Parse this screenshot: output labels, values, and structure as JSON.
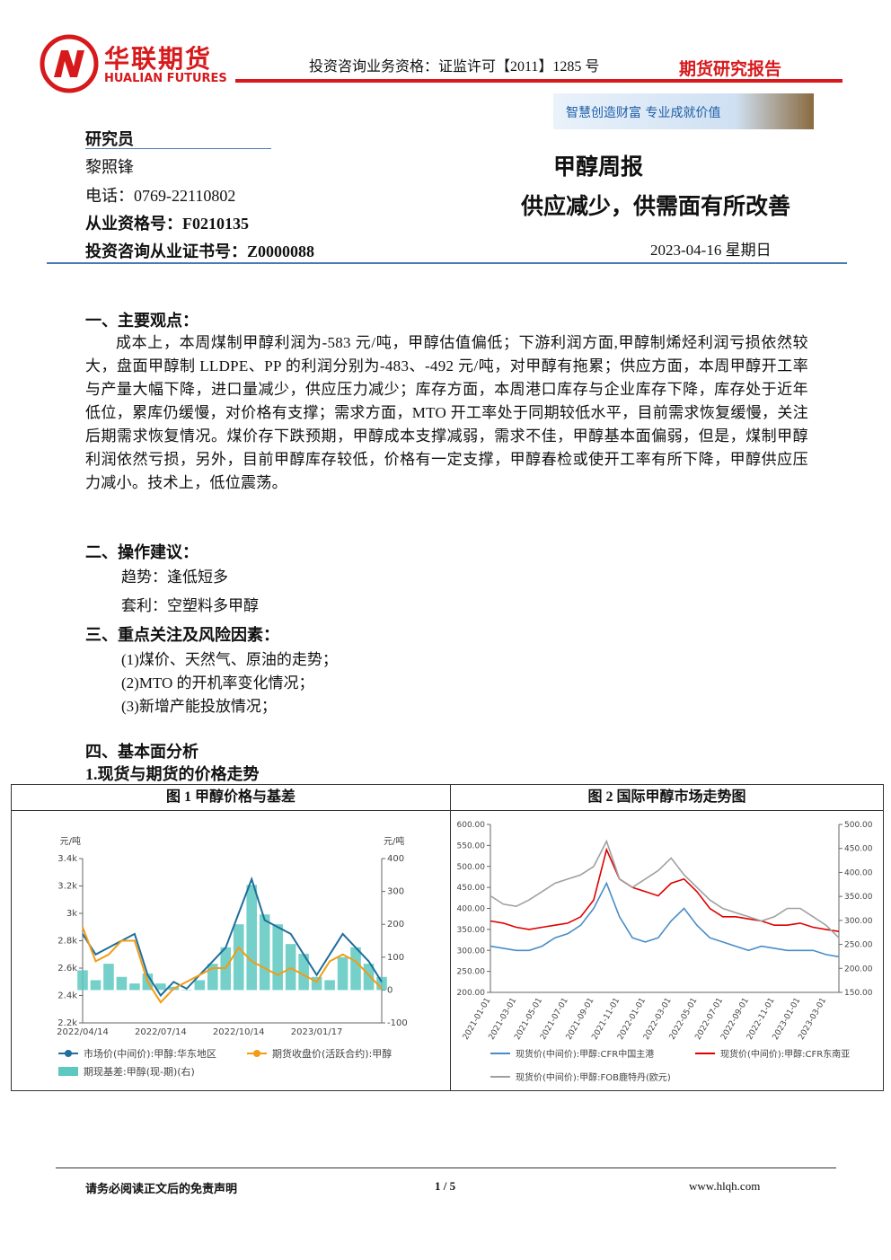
{
  "header": {
    "company": "华联期货",
    "company_en": "HUALIAN FUTURES",
    "qualification": "投资咨询业务资格：证监许可【2011】1285 号",
    "report_type": "期货研究报告",
    "slogan": "智慧创造财富  专业成就价值"
  },
  "researcher": {
    "heading": "研究员",
    "name": "黎照锋",
    "phone": "电话：0769-22110802",
    "license": "从业资格号：F0210135",
    "cert": "投资咨询从业证书号：Z0000088"
  },
  "report": {
    "title": "甲醇周报",
    "subtitle": "供应减少，供需面有所改善",
    "date": "2023-04-16 星期日"
  },
  "sections": [
    {
      "heading": "一、主要观点：",
      "paragraph": "成本上，本周煤制甲醇利润为-583 元/吨，甲醇估值偏低；下游利润方面,甲醇制烯烃利润亏损依然较大，盘面甲醇制 LLDPE、PP 的利润分别为-483、-492 元/吨，对甲醇有拖累；供应方面，本周甲醇开工率与产量大幅下降，进口量减少，供应压力减少；库存方面，本周港口库存与企业库存下降，库存处于近年低位，累库仍缓慢，对价格有支撑；需求方面，MTO 开工率处于同期较低水平，目前需求恢复缓慢，关注后期需求恢复情况。煤价存下跌预期，甲醇成本支撑减弱，需求不佳，甲醇基本面偏弱，但是，煤制甲醇利润依然亏损，另外，目前甲醇库存较低，价格有一定支撑，甲醇春检或使开工率有所下降，甲醇供应压力减小。技术上，低位震荡。"
    },
    {
      "heading": "二、操作建议：",
      "items": [
        "趋势：逢低短多",
        "套利：空塑料多甲醇"
      ]
    },
    {
      "heading": "三、重点关注及风险因素：",
      "items": [
        "(1)煤价、天然气、原油的走势；",
        "(2)MTO 的开机率变化情况；",
        "(3)新增产能投放情况；"
      ]
    },
    {
      "heading": "四、基本面分析",
      "subheading": "1.现货与期货的价格走势"
    }
  ],
  "figures": [
    {
      "title": "图 1  甲醇价格与基差",
      "chart_data": {
        "type": "combo",
        "y_unit": "元/吨",
        "y2_unit": "元/吨",
        "categories": [
          "2022/04/14",
          null,
          null,
          null,
          null,
          null,
          "2022/07/14",
          null,
          null,
          null,
          null,
          null,
          "2022/10/14",
          null,
          null,
          null,
          null,
          null,
          "2023/01/17",
          null,
          null,
          null,
          null,
          null
        ],
        "ylim": [
          2200,
          3400
        ],
        "yticks": [
          {
            "value": 2200,
            "label": "2.2k"
          },
          {
            "value": 2400,
            "label": "2.4k"
          },
          {
            "value": 2600,
            "label": "2.6k"
          },
          {
            "value": 2800,
            "label": "2.8k"
          },
          {
            "value": 3000,
            "label": "3k"
          },
          {
            "value": 3200,
            "label": "3.2k"
          },
          {
            "value": 3400,
            "label": "3.4k"
          }
        ],
        "y2lim": [
          -100,
          400
        ],
        "y2ticks": [
          -100,
          0,
          100,
          200,
          300,
          400
        ],
        "series": [
          {
            "name": "期现基差:甲醇(现-期)(右)",
            "type": "bar",
            "axis": "y2",
            "color": "#5cc8c0",
            "values": [
              60,
              30,
              80,
              40,
              20,
              50,
              20,
              10,
              0,
              30,
              80,
              130,
              200,
              320,
              230,
              200,
              140,
              110,
              40,
              30,
              100,
              130,
              80,
              40
            ]
          },
          {
            "name": "市场价(中间价):甲醇:华东地区",
            "type": "line",
            "color": "#1f6e9c",
            "values": [
              2850,
              2700,
              2750,
              2800,
              2850,
              2550,
              2400,
              2500,
              2450,
              2550,
              2650,
              2750,
              3000,
              3250,
              2950,
              2900,
              2850,
              2700,
              2550,
              2700,
              2850,
              2750,
              2650,
              2500
            ]
          },
          {
            "name": "期货收盘价(活跃合约):甲醇",
            "type": "line",
            "color": "#f39c12",
            "values": [
              2900,
              2650,
              2700,
              2800,
              2800,
              2500,
              2350,
              2450,
              2500,
              2550,
              2600,
              2600,
              2750,
              2650,
              2600,
              2550,
              2600,
              2550,
              2500,
              2650,
              2700,
              2650,
              2550,
              2450
            ]
          }
        ]
      }
    },
    {
      "title": "图 2  国际甲醇市场走势图",
      "chart_data": {
        "type": "line",
        "categories": [
          "2021-01-01",
          null,
          "2021-03-01",
          null,
          "2021-05-01",
          null,
          "2021-07-01",
          null,
          "2021-09-01",
          null,
          "2021-11-01",
          null,
          "2022-01-01",
          null,
          "2022-03-01",
          null,
          "2022-05-01",
          null,
          "2022-07-01",
          null,
          "2022-09-01",
          null,
          "2022-11-01",
          null,
          "2023-01-01",
          null,
          "2023-03-01",
          null
        ],
        "ylim": [
          200,
          600
        ],
        "yticks": [
          {
            "value": 200,
            "label": "200.00"
          },
          {
            "value": 250,
            "label": "250.00"
          },
          {
            "value": 300,
            "label": "300.00"
          },
          {
            "value": 350,
            "label": "350.00"
          },
          {
            "value": 400,
            "label": "400.00"
          },
          {
            "value": 450,
            "label": "450.00"
          },
          {
            "value": 500,
            "label": "500.00"
          },
          {
            "value": 550,
            "label": "550.00"
          },
          {
            "value": 600,
            "label": "600.00"
          }
        ],
        "y2lim": [
          150,
          500
        ],
        "y2ticks": [
          {
            "value": 150,
            "label": "150.00"
          },
          {
            "value": 200,
            "label": "200.00"
          },
          {
            "value": 250,
            "label": "250.00"
          },
          {
            "value": 300,
            "label": "300.00"
          },
          {
            "value": 350,
            "label": "350.00"
          },
          {
            "value": 400,
            "label": "400.00"
          },
          {
            "value": 450,
            "label": "450.00"
          },
          {
            "value": 500,
            "label": "500.00"
          }
        ],
        "series": [
          {
            "name": "现货价(中间价):甲醇:CFR中国主港",
            "color": "#4a8cc7",
            "values": [
              310,
              305,
              300,
              300,
              310,
              330,
              340,
              360,
              400,
              460,
              380,
              330,
              320,
              330,
              370,
              400,
              360,
              330,
              320,
              310,
              300,
              310,
              305,
              300,
              300,
              300,
              290,
              285
            ]
          },
          {
            "name": "现货价(中间价):甲醇:CFR东南亚",
            "color": "#e00000",
            "values": [
              370,
              365,
              355,
              350,
              355,
              360,
              365,
              380,
              420,
              540,
              470,
              450,
              440,
              430,
              460,
              470,
              440,
              400,
              380,
              380,
              375,
              370,
              360,
              360,
              365,
              355,
              350,
              345
            ]
          },
          {
            "name": "现货价(中间价):甲醇:FOB鹿特丹(欧元)",
            "color": "#a0a0a0",
            "values": [
              430,
              410,
              405,
              420,
              440,
              460,
              470,
              480,
              500,
              560,
              470,
              450,
              470,
              490,
              520,
              480,
              450,
              420,
              400,
              390,
              380,
              370,
              380,
              400,
              400,
              380,
              360,
              330
            ]
          }
        ]
      }
    }
  ],
  "footer": {
    "disclaimer": "请务必阅读正文后的免责声明",
    "page": "1 / 5",
    "website": "www.hlqh.com"
  }
}
